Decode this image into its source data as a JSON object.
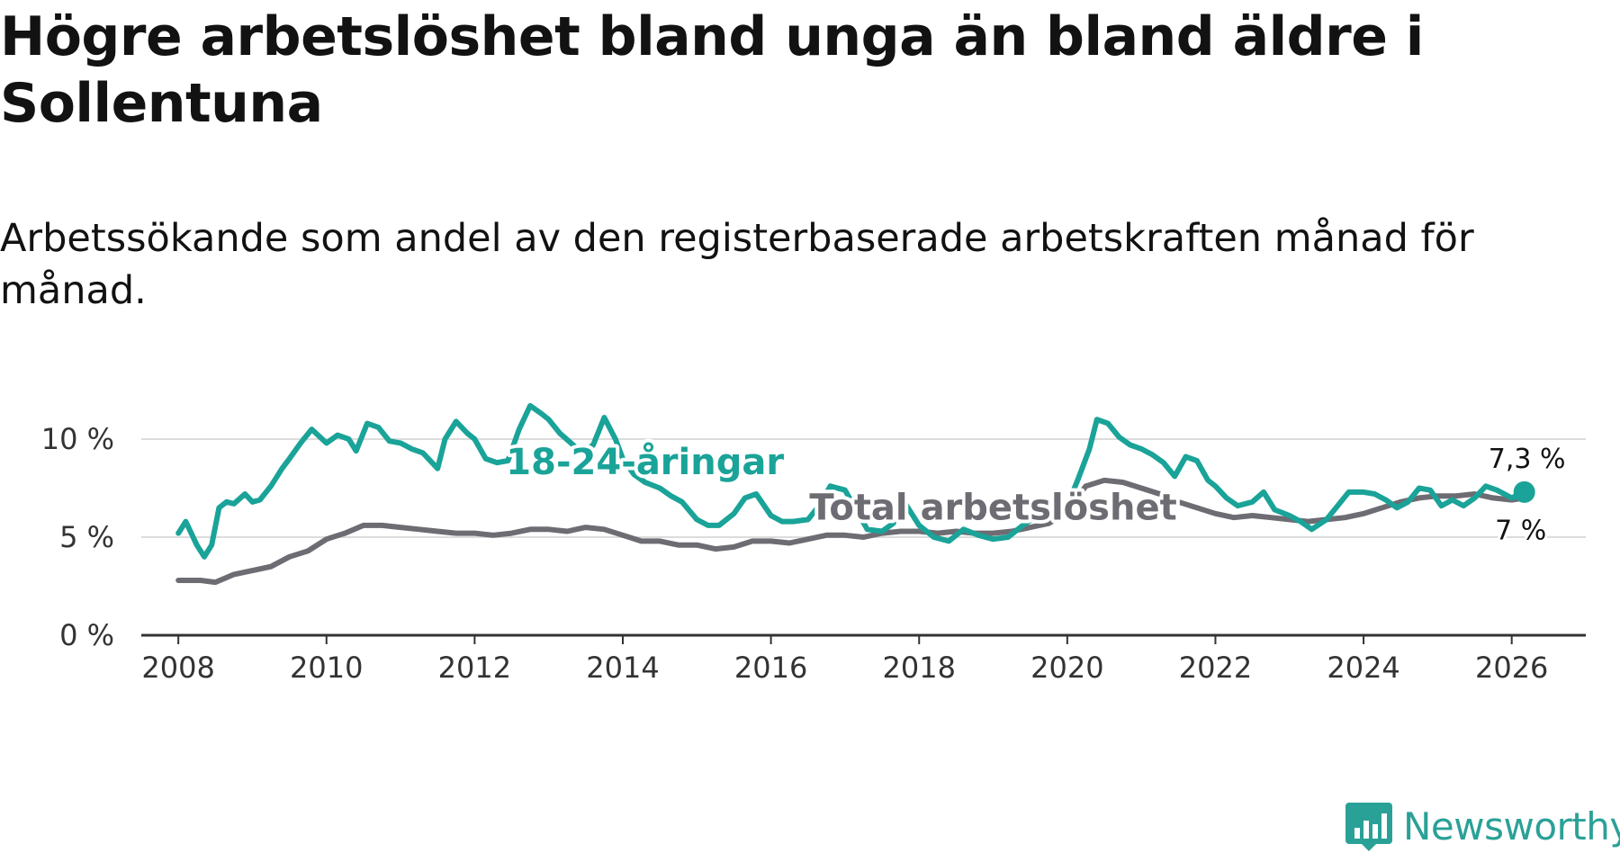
{
  "title": "Högre arbetslöshet bland unga än bland äldre i Sollentuna",
  "subtitle": "Arbetssökande som andel av den registerbaserade arbetskraften månad för månad.",
  "brand": {
    "name": "Newsworthy",
    "color": "#2aa197"
  },
  "chart_data": {
    "type": "line",
    "title": "Högre arbetslöshet bland unga än bland äldre i Sollentuna",
    "xlabel": "",
    "ylabel": "",
    "xlim": [
      2007.5,
      2027
    ],
    "ylim": [
      0,
      10
    ],
    "y_ticks": [
      0,
      5,
      10
    ],
    "y_tick_labels": [
      "0 %",
      "5 %",
      "10 %"
    ],
    "x_ticks": [
      2008,
      2010,
      2012,
      2014,
      2016,
      2018,
      2020,
      2022,
      2024,
      2026
    ],
    "x_tick_labels": [
      "2008",
      "2010",
      "2012",
      "2014",
      "2016",
      "2018",
      "2020",
      "2022",
      "2024",
      "2026"
    ],
    "grid": true,
    "series": [
      {
        "name": "Total arbetslöshet",
        "color": "#6e6c73",
        "end_label": "7 %",
        "x": [
          2008.0,
          2008.3,
          2008.5,
          2008.75,
          2009.0,
          2009.25,
          2009.5,
          2009.75,
          2010.0,
          2010.25,
          2010.5,
          2010.75,
          2011.0,
          2011.25,
          2011.5,
          2011.75,
          2012.0,
          2012.25,
          2012.5,
          2012.75,
          2013.0,
          2013.25,
          2013.5,
          2013.75,
          2014.0,
          2014.25,
          2014.5,
          2014.75,
          2015.0,
          2015.25,
          2015.5,
          2015.75,
          2016.0,
          2016.25,
          2016.5,
          2016.75,
          2017.0,
          2017.25,
          2017.5,
          2017.75,
          2018.0,
          2018.25,
          2018.5,
          2018.75,
          2019.0,
          2019.25,
          2019.5,
          2019.75,
          2020.0,
          2020.25,
          2020.5,
          2020.75,
          2021.0,
          2021.25,
          2021.5,
          2021.75,
          2022.0,
          2022.25,
          2022.5,
          2022.75,
          2023.0,
          2023.25,
          2023.5,
          2023.75,
          2024.0,
          2024.25,
          2024.5,
          2024.75,
          2025.0,
          2025.25,
          2025.5,
          2025.75,
          2026.0,
          2026.17
        ],
        "values": [
          2.8,
          2.8,
          2.7,
          3.1,
          3.3,
          3.5,
          4.0,
          4.3,
          4.9,
          5.2,
          5.6,
          5.6,
          5.5,
          5.4,
          5.3,
          5.2,
          5.2,
          5.1,
          5.2,
          5.4,
          5.4,
          5.3,
          5.5,
          5.4,
          5.1,
          4.8,
          4.8,
          4.6,
          4.6,
          4.4,
          4.5,
          4.8,
          4.8,
          4.7,
          4.9,
          5.1,
          5.1,
          5.0,
          5.2,
          5.3,
          5.3,
          5.2,
          5.3,
          5.2,
          5.2,
          5.3,
          5.5,
          5.7,
          6.3,
          7.6,
          7.9,
          7.8,
          7.5,
          7.2,
          6.8,
          6.5,
          6.2,
          6.0,
          6.1,
          6.0,
          5.9,
          5.8,
          5.9,
          6.0,
          6.2,
          6.5,
          6.8,
          7.0,
          7.1,
          7.1,
          7.2,
          7.0,
          6.9,
          7.0
        ]
      },
      {
        "name": "18-24-åringar",
        "color": "#1aa398",
        "end_label": "7,3 %",
        "x": [
          2008.0,
          2008.1,
          2008.25,
          2008.35,
          2008.45,
          2008.55,
          2008.65,
          2008.75,
          2008.9,
          2009.0,
          2009.1,
          2009.25,
          2009.4,
          2009.5,
          2009.65,
          2009.8,
          2010.0,
          2010.15,
          2010.3,
          2010.4,
          2010.55,
          2010.7,
          2010.85,
          2011.0,
          2011.15,
          2011.3,
          2011.5,
          2011.6,
          2011.75,
          2011.9,
          2012.0,
          2012.15,
          2012.3,
          2012.45,
          2012.6,
          2012.75,
          2012.9,
          2013.0,
          2013.15,
          2013.3,
          2013.45,
          2013.6,
          2013.75,
          2013.9,
          2014.0,
          2014.15,
          2014.3,
          2014.5,
          2014.65,
          2014.8,
          2015.0,
          2015.15,
          2015.3,
          2015.5,
          2015.65,
          2015.8,
          2016.0,
          2016.15,
          2016.3,
          2016.5,
          2016.65,
          2016.8,
          2017.0,
          2017.15,
          2017.3,
          2017.5,
          2017.65,
          2017.8,
          2018.0,
          2018.2,
          2018.4,
          2018.6,
          2018.8,
          2019.0,
          2019.2,
          2019.4,
          2019.6,
          2019.8,
          2020.0,
          2020.15,
          2020.3,
          2020.4,
          2020.55,
          2020.7,
          2020.85,
          2021.0,
          2021.15,
          2021.3,
          2021.45,
          2021.6,
          2021.75,
          2021.9,
          2022.0,
          2022.15,
          2022.3,
          2022.5,
          2022.65,
          2022.8,
          2023.0,
          2023.15,
          2023.3,
          2023.5,
          2023.65,
          2023.8,
          2024.0,
          2024.15,
          2024.3,
          2024.45,
          2024.6,
          2024.75,
          2024.9,
          2025.05,
          2025.2,
          2025.35,
          2025.5,
          2025.65,
          2025.8,
          2026.0,
          2026.17
        ],
        "values": [
          5.2,
          5.8,
          4.6,
          4.0,
          4.6,
          6.5,
          6.8,
          6.7,
          7.2,
          6.8,
          6.9,
          7.6,
          8.5,
          9.0,
          9.8,
          10.5,
          9.8,
          10.2,
          10.0,
          9.4,
          10.8,
          10.6,
          9.9,
          9.8,
          9.5,
          9.3,
          8.5,
          10.0,
          10.9,
          10.3,
          10.0,
          9.0,
          8.8,
          8.9,
          10.5,
          11.7,
          11.3,
          11.0,
          10.3,
          9.8,
          9.3,
          9.7,
          11.1,
          10.0,
          9.0,
          8.2,
          7.8,
          7.5,
          7.1,
          6.8,
          5.9,
          5.6,
          5.6,
          6.2,
          7.0,
          7.2,
          6.1,
          5.8,
          5.8,
          5.9,
          6.6,
          7.6,
          7.4,
          6.4,
          5.4,
          5.3,
          5.7,
          6.8,
          5.6,
          5.0,
          4.8,
          5.4,
          5.1,
          4.9,
          5.0,
          5.6,
          6.1,
          6.3,
          6.6,
          8.0,
          9.5,
          11.0,
          10.8,
          10.1,
          9.7,
          9.5,
          9.2,
          8.8,
          8.1,
          9.1,
          8.9,
          7.9,
          7.6,
          7.0,
          6.6,
          6.8,
          7.3,
          6.4,
          6.1,
          5.8,
          5.4,
          5.9,
          6.6,
          7.3,
          7.3,
          7.2,
          6.9,
          6.5,
          6.8,
          7.5,
          7.4,
          6.6,
          6.9,
          6.6,
          7.0,
          7.6,
          7.4,
          7.0,
          7.3
        ]
      }
    ],
    "annotations": [
      {
        "text": "18-24-åringar",
        "series": "18-24-åringar",
        "x": 2014.3,
        "y": 8.2
      },
      {
        "text": "Total arbetslöshet",
        "series": "Total arbetslöshet",
        "x": 2019.0,
        "y": 5.9
      }
    ],
    "end_marker": {
      "series": "18-24-åringar",
      "x": 2026.17,
      "y": 7.3
    }
  }
}
